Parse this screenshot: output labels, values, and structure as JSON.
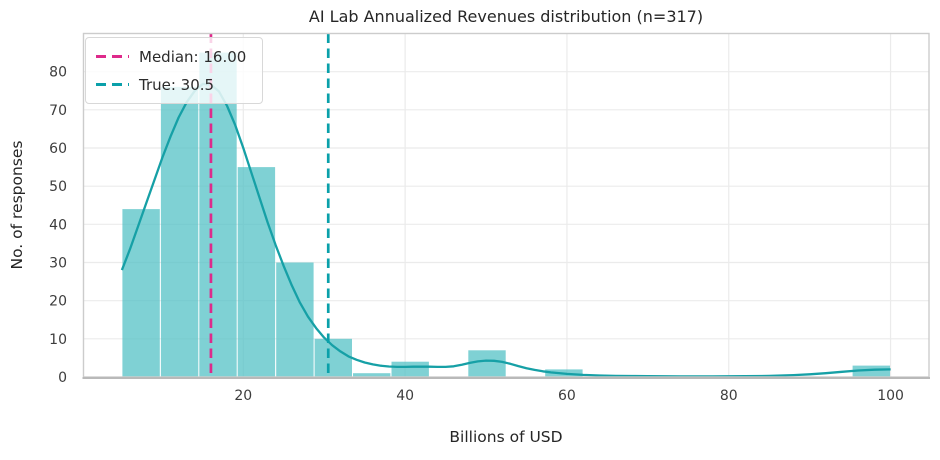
{
  "figure": {
    "title": "AI Lab Annualized Revenues distribution (n=317)",
    "xlabel": "Billions of USD",
    "ylabel": "No. of responses"
  },
  "chart_data": {
    "type": "bar",
    "subtype": "histogram-with-kde",
    "title": "AI Lab Annualized Revenues distribution (n=317)",
    "n": 317,
    "xlabel": "Billions of USD",
    "ylabel": "No. of responses",
    "xlim": [
      0.25,
      104.75
    ],
    "ylim": [
      0,
      90
    ],
    "xticks": [
      20,
      40,
      60,
      80,
      100
    ],
    "yticks": [
      0,
      10,
      20,
      30,
      40,
      50,
      60,
      70,
      80
    ],
    "grid": true,
    "legend_position": "upper-left",
    "bins": {
      "start": 5,
      "width": 4.75,
      "counts": [
        44,
        76,
        85,
        55,
        30,
        10,
        1,
        4,
        0,
        7,
        0,
        2,
        0,
        0,
        0,
        0,
        0,
        0,
        0,
        3
      ]
    },
    "kde": {
      "x": [
        5,
        6,
        7,
        8,
        9,
        10,
        11,
        12,
        13,
        14,
        15,
        16,
        17,
        18,
        19,
        20,
        21,
        22,
        23,
        24,
        25,
        26,
        27,
        28,
        29,
        30,
        31,
        32,
        33,
        34,
        35,
        36,
        37,
        38,
        39,
        40,
        41,
        42,
        43,
        44,
        45,
        46,
        47,
        48,
        49,
        50,
        51,
        52,
        53,
        54,
        55,
        56,
        57,
        58,
        60,
        62,
        64,
        66,
        68,
        70,
        74,
        78,
        82,
        85,
        88,
        90,
        92,
        94,
        96,
        98,
        100
      ],
      "y": [
        28,
        33.5,
        39.5,
        45.5,
        51.5,
        57.5,
        63,
        68,
        72,
        75,
        76.8,
        76.6,
        74.8,
        71,
        66,
        60,
        53.5,
        47,
        40.5,
        34.5,
        29,
        24,
        19.5,
        15.8,
        12.8,
        10.3,
        8.3,
        6.7,
        5.4,
        4.5,
        3.8,
        3.3,
        2.95,
        2.75,
        2.65,
        2.65,
        2.7,
        2.7,
        2.7,
        2.65,
        2.65,
        2.8,
        3.2,
        3.7,
        4.1,
        4.3,
        4.25,
        3.95,
        3.45,
        2.85,
        2.3,
        1.85,
        1.5,
        1.2,
        0.8,
        0.55,
        0.4,
        0.3,
        0.25,
        0.2,
        0.15,
        0.15,
        0.2,
        0.3,
        0.5,
        0.7,
        1.0,
        1.35,
        1.7,
        1.9,
        2.0
      ]
    },
    "vlines": [
      {
        "name": "median",
        "x": 16,
        "label": "Median: 16.00",
        "color": "#de2a8b"
      },
      {
        "name": "true",
        "x": 30.5,
        "label": "True: 30.5",
        "color": "#0aa0aa"
      }
    ],
    "colors": {
      "bar": "#54c2c6",
      "kde": "#16a0a6",
      "grid": "#ebebeb",
      "spine": "#cccccc",
      "bottom_spine": "#b9b9b9"
    }
  }
}
